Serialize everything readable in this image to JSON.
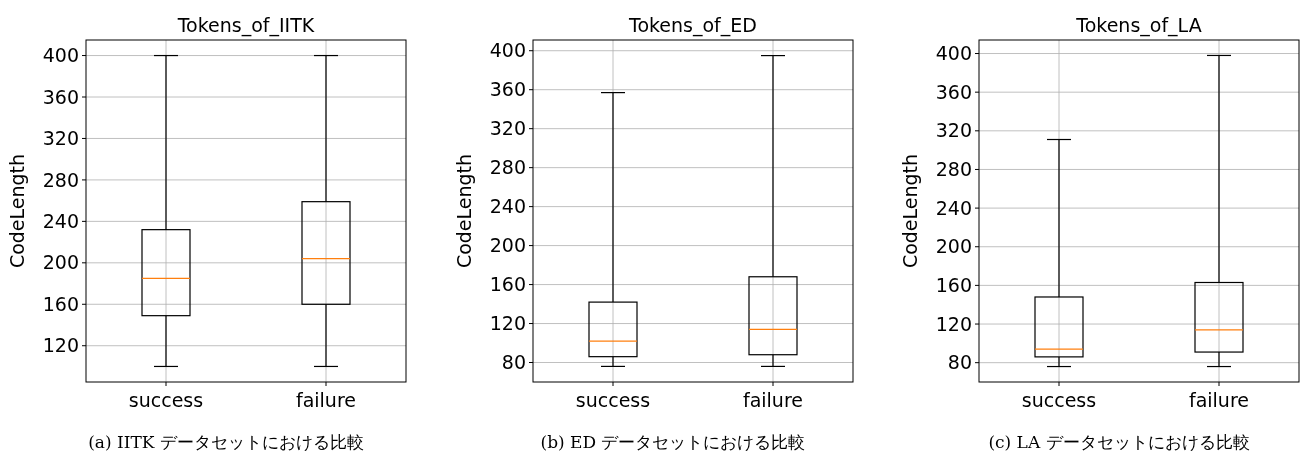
{
  "chart_data": [
    {
      "type": "box",
      "title": "Tokens_of_IITK",
      "ylabel": "CodeLength",
      "categories": [
        "success",
        "failure"
      ],
      "ylim": [
        85,
        415
      ],
      "yticks": [
        120,
        160,
        200,
        240,
        280,
        320,
        360,
        400
      ],
      "grid": true,
      "color": "#000000",
      "boxes": [
        {
          "low": 100,
          "q1": 149,
          "median": 185,
          "q3": 232,
          "high": 400
        },
        {
          "low": 100,
          "q1": 160,
          "median": 204,
          "q3": 259,
          "high": 400
        }
      ],
      "annotations": [
        "(a) IITK データセットにおける比較"
      ]
    },
    {
      "type": "box",
      "title": "Tokens_of_ED",
      "ylabel": "CodeLength",
      "categories": [
        "success",
        "failure"
      ],
      "ylim": [
        60,
        411
      ],
      "yticks": [
        80,
        120,
        160,
        200,
        240,
        280,
        320,
        360,
        400
      ],
      "grid": true,
      "color": "#000000",
      "boxes": [
        {
          "low": 76,
          "q1": 86,
          "median": 102,
          "q3": 142,
          "high": 357
        },
        {
          "low": 76,
          "q1": 88,
          "median": 114,
          "q3": 168,
          "high": 395
        }
      ],
      "annotations": [
        "(b) ED データセットにおける比較"
      ]
    },
    {
      "type": "box",
      "title": "Tokens_of_LA",
      "ylabel": "CodeLength",
      "categories": [
        "success",
        "failure"
      ],
      "ylim": [
        60,
        414
      ],
      "yticks": [
        80,
        120,
        160,
        200,
        240,
        280,
        320,
        360,
        400
      ],
      "grid": true,
      "color": "#000000",
      "boxes": [
        {
          "low": 76,
          "q1": 86,
          "median": 94,
          "q3": 148,
          "high": 311
        },
        {
          "low": 76,
          "q1": 91,
          "median": 114,
          "q3": 163,
          "high": 398
        }
      ],
      "annotations": [
        "(c) LA データセットにおける比較"
      ]
    }
  ]
}
